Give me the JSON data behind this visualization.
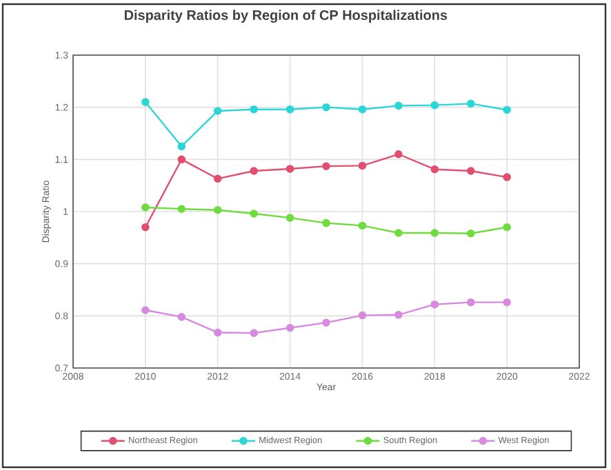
{
  "chart_data": {
    "type": "line",
    "title": "Disparity Ratios by Region of CP Hospitalizations",
    "xlabel": "Year",
    "ylabel": "Disparity Ratio",
    "x": [
      2010,
      2011,
      2012,
      2013,
      2014,
      2015,
      2016,
      2017,
      2018,
      2019,
      2020
    ],
    "series": [
      {
        "name": "Northeast Region",
        "color": "#e0506e",
        "values": [
          0.97,
          1.1,
          1.063,
          1.078,
          1.082,
          1.087,
          1.088,
          1.11,
          1.081,
          1.078,
          1.066
        ]
      },
      {
        "name": "Midwest Region",
        "color": "#2dd6d6",
        "values": [
          1.21,
          1.125,
          1.193,
          1.196,
          1.196,
          1.2,
          1.196,
          1.203,
          1.204,
          1.207,
          1.195
        ]
      },
      {
        "name": "South Region",
        "color": "#6fdb3f",
        "values": [
          1.008,
          1.005,
          1.003,
          0.996,
          0.988,
          0.978,
          0.973,
          0.959,
          0.959,
          0.958,
          0.97
        ]
      },
      {
        "name": "West Region",
        "color": "#d78ae0",
        "values": [
          0.811,
          0.798,
          0.768,
          0.767,
          0.777,
          0.787,
          0.801,
          0.802,
          0.822,
          0.826,
          0.826
        ]
      }
    ],
    "xlim": [
      2008,
      2022
    ],
    "xticks": [
      2008,
      2010,
      2012,
      2014,
      2016,
      2018,
      2020,
      2022
    ],
    "ylim": [
      0.7,
      1.3
    ],
    "yticks": [
      0.7,
      0.8,
      0.9,
      1,
      1.1,
      1.2,
      1.3
    ],
    "grid": true,
    "legend": "bottom",
    "marker": "circle",
    "line_style": "solid"
  }
}
